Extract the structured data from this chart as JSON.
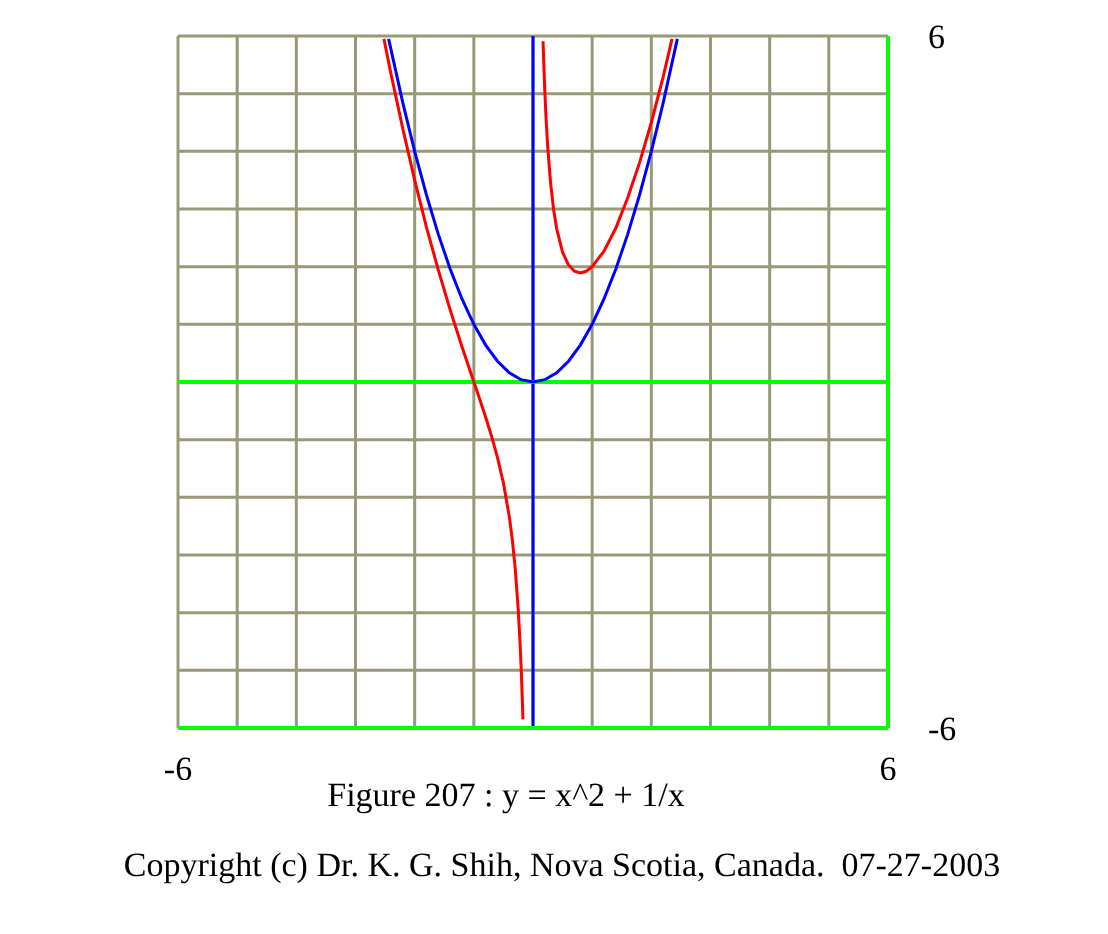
{
  "chart_data": {
    "type": "line",
    "title": "Figure 207 : y = x^2 + 1/x",
    "annotations": [
      "Copyright (c) Dr. K. G. Shih, Nova Scotia, Canada.  07-27-2003"
    ],
    "xlim": [
      -6,
      6
    ],
    "ylim": [
      -6,
      6
    ],
    "xticks": [
      -6,
      {
        "value": -5,
        "label": null
      },
      {
        "value": -4,
        "label": null
      },
      {
        "value": -3,
        "label": null
      },
      {
        "value": -2,
        "label": null
      },
      {
        "value": -1,
        "label": null
      },
      {
        "value": 0,
        "label": null
      },
      {
        "value": 1,
        "label": null
      },
      {
        "value": 2,
        "label": null
      },
      {
        "value": 3,
        "label": null
      },
      {
        "value": 4,
        "label": null
      },
      {
        "value": 5,
        "label": null
      },
      6
    ],
    "yticks": [
      -6,
      {
        "value": -5,
        "label": null
      },
      {
        "value": -4,
        "label": null
      },
      {
        "value": -3,
        "label": null
      },
      {
        "value": -2,
        "label": null
      },
      {
        "value": -1,
        "label": null
      },
      {
        "value": 0,
        "label": null
      },
      {
        "value": 1,
        "label": null
      },
      {
        "value": 2,
        "label": null
      },
      {
        "value": 3,
        "label": null
      },
      {
        "value": 4,
        "label": null
      },
      {
        "value": 5,
        "label": null
      },
      6
    ],
    "grid": true,
    "ref_lines": [
      {
        "axis": "x",
        "value": 0,
        "color": "#0000ff"
      },
      {
        "axis": "y",
        "value": 0,
        "color": "#00ff00"
      }
    ],
    "series": [
      {
        "color": "#ff0000",
        "x": [
          -2.52,
          -2.4,
          -2.2,
          -2.0,
          -1.8,
          -1.6,
          -1.4,
          -1.2,
          -1.0,
          -0.9,
          -0.8,
          -0.7,
          -0.6,
          -0.5,
          -0.4,
          -0.35,
          -0.3,
          -0.25,
          -0.22,
          -0.2,
          -0.18,
          -0.17,
          0,
          0.17,
          0.18,
          0.2,
          0.22,
          0.25,
          0.3,
          0.35,
          0.4,
          0.5,
          0.6,
          0.7,
          0.8,
          0.9,
          1.0,
          1.2,
          1.4,
          1.6,
          1.8,
          2.0,
          2.2,
          2.35
        ],
        "values": [
          5.95,
          5.34,
          4.39,
          3.5,
          2.68,
          1.94,
          1.25,
          0.61,
          0,
          -0.3,
          -0.61,
          -0.94,
          -1.31,
          -1.75,
          -2.34,
          -2.73,
          -3.24,
          -3.94,
          -4.5,
          -4.96,
          -5.52,
          -5.85,
          null,
          5.91,
          5.59,
          5.04,
          4.59,
          4.06,
          3.42,
          2.98,
          2.66,
          2.25,
          2.03,
          1.92,
          1.89,
          1.92,
          2,
          2.27,
          2.67,
          3.19,
          3.8,
          4.5,
          5.29,
          5.95
        ]
      },
      {
        "color": "#0000ff",
        "x": [
          -2.44,
          -2.2,
          -2.0,
          -1.8,
          -1.6,
          -1.4,
          -1.2,
          -1.0,
          -0.8,
          -0.6,
          -0.4,
          -0.2,
          0,
          0.2,
          0.4,
          0.6,
          0.8,
          1.0,
          1.2,
          1.4,
          1.6,
          1.8,
          2.0,
          2.2,
          2.44
        ],
        "values": [
          5.95,
          4.84,
          4,
          3.24,
          2.56,
          1.96,
          1.44,
          1,
          0.64,
          0.36,
          0.16,
          0.04,
          0,
          0.04,
          0.16,
          0.36,
          0.64,
          1,
          1.44,
          1.96,
          2.56,
          3.24,
          4,
          4.84,
          5.95
        ]
      }
    ]
  }
}
